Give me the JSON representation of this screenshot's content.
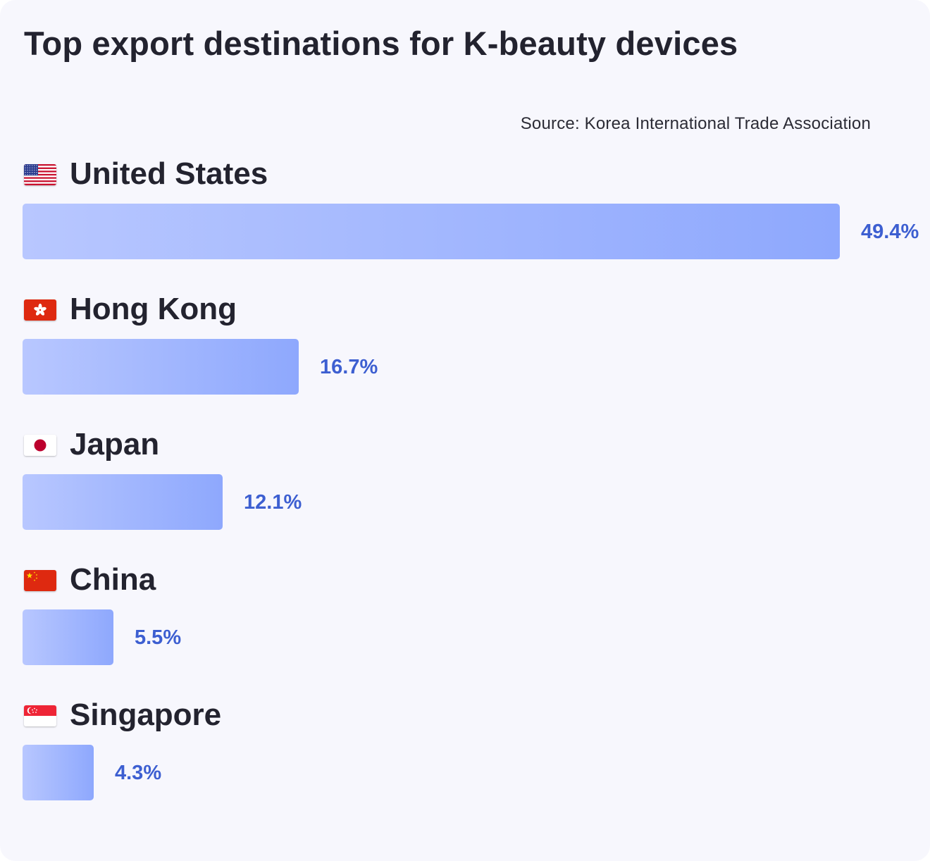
{
  "title": "Top export destinations for K-beauty devices",
  "source": "Source: Korea International Trade Association",
  "colors": {
    "bar_start": "#b8c7ff",
    "bar_end": "#8ea8fd",
    "value_text": "#3d5fd1",
    "text": "#23232f",
    "background": "#f7f7fd"
  },
  "chart_data": {
    "type": "bar",
    "orientation": "horizontal",
    "title": "Top export destinations for K-beauty devices",
    "categories": [
      "United States",
      "Hong Kong",
      "Japan",
      "China",
      "Singapore"
    ],
    "values": [
      49.4,
      16.7,
      12.1,
      5.5,
      4.3
    ],
    "value_labels": [
      "49.4%",
      "16.7%",
      "12.1%",
      "5.5%",
      "4.3%"
    ],
    "flags": [
      "us-flag-icon",
      "hk-flag-icon",
      "jp-flag-icon",
      "cn-flag-icon",
      "sg-flag-icon"
    ],
    "unit": "%",
    "grid": false,
    "legend": "none",
    "annotations": [
      "Source: Korea International Trade Association"
    ]
  }
}
